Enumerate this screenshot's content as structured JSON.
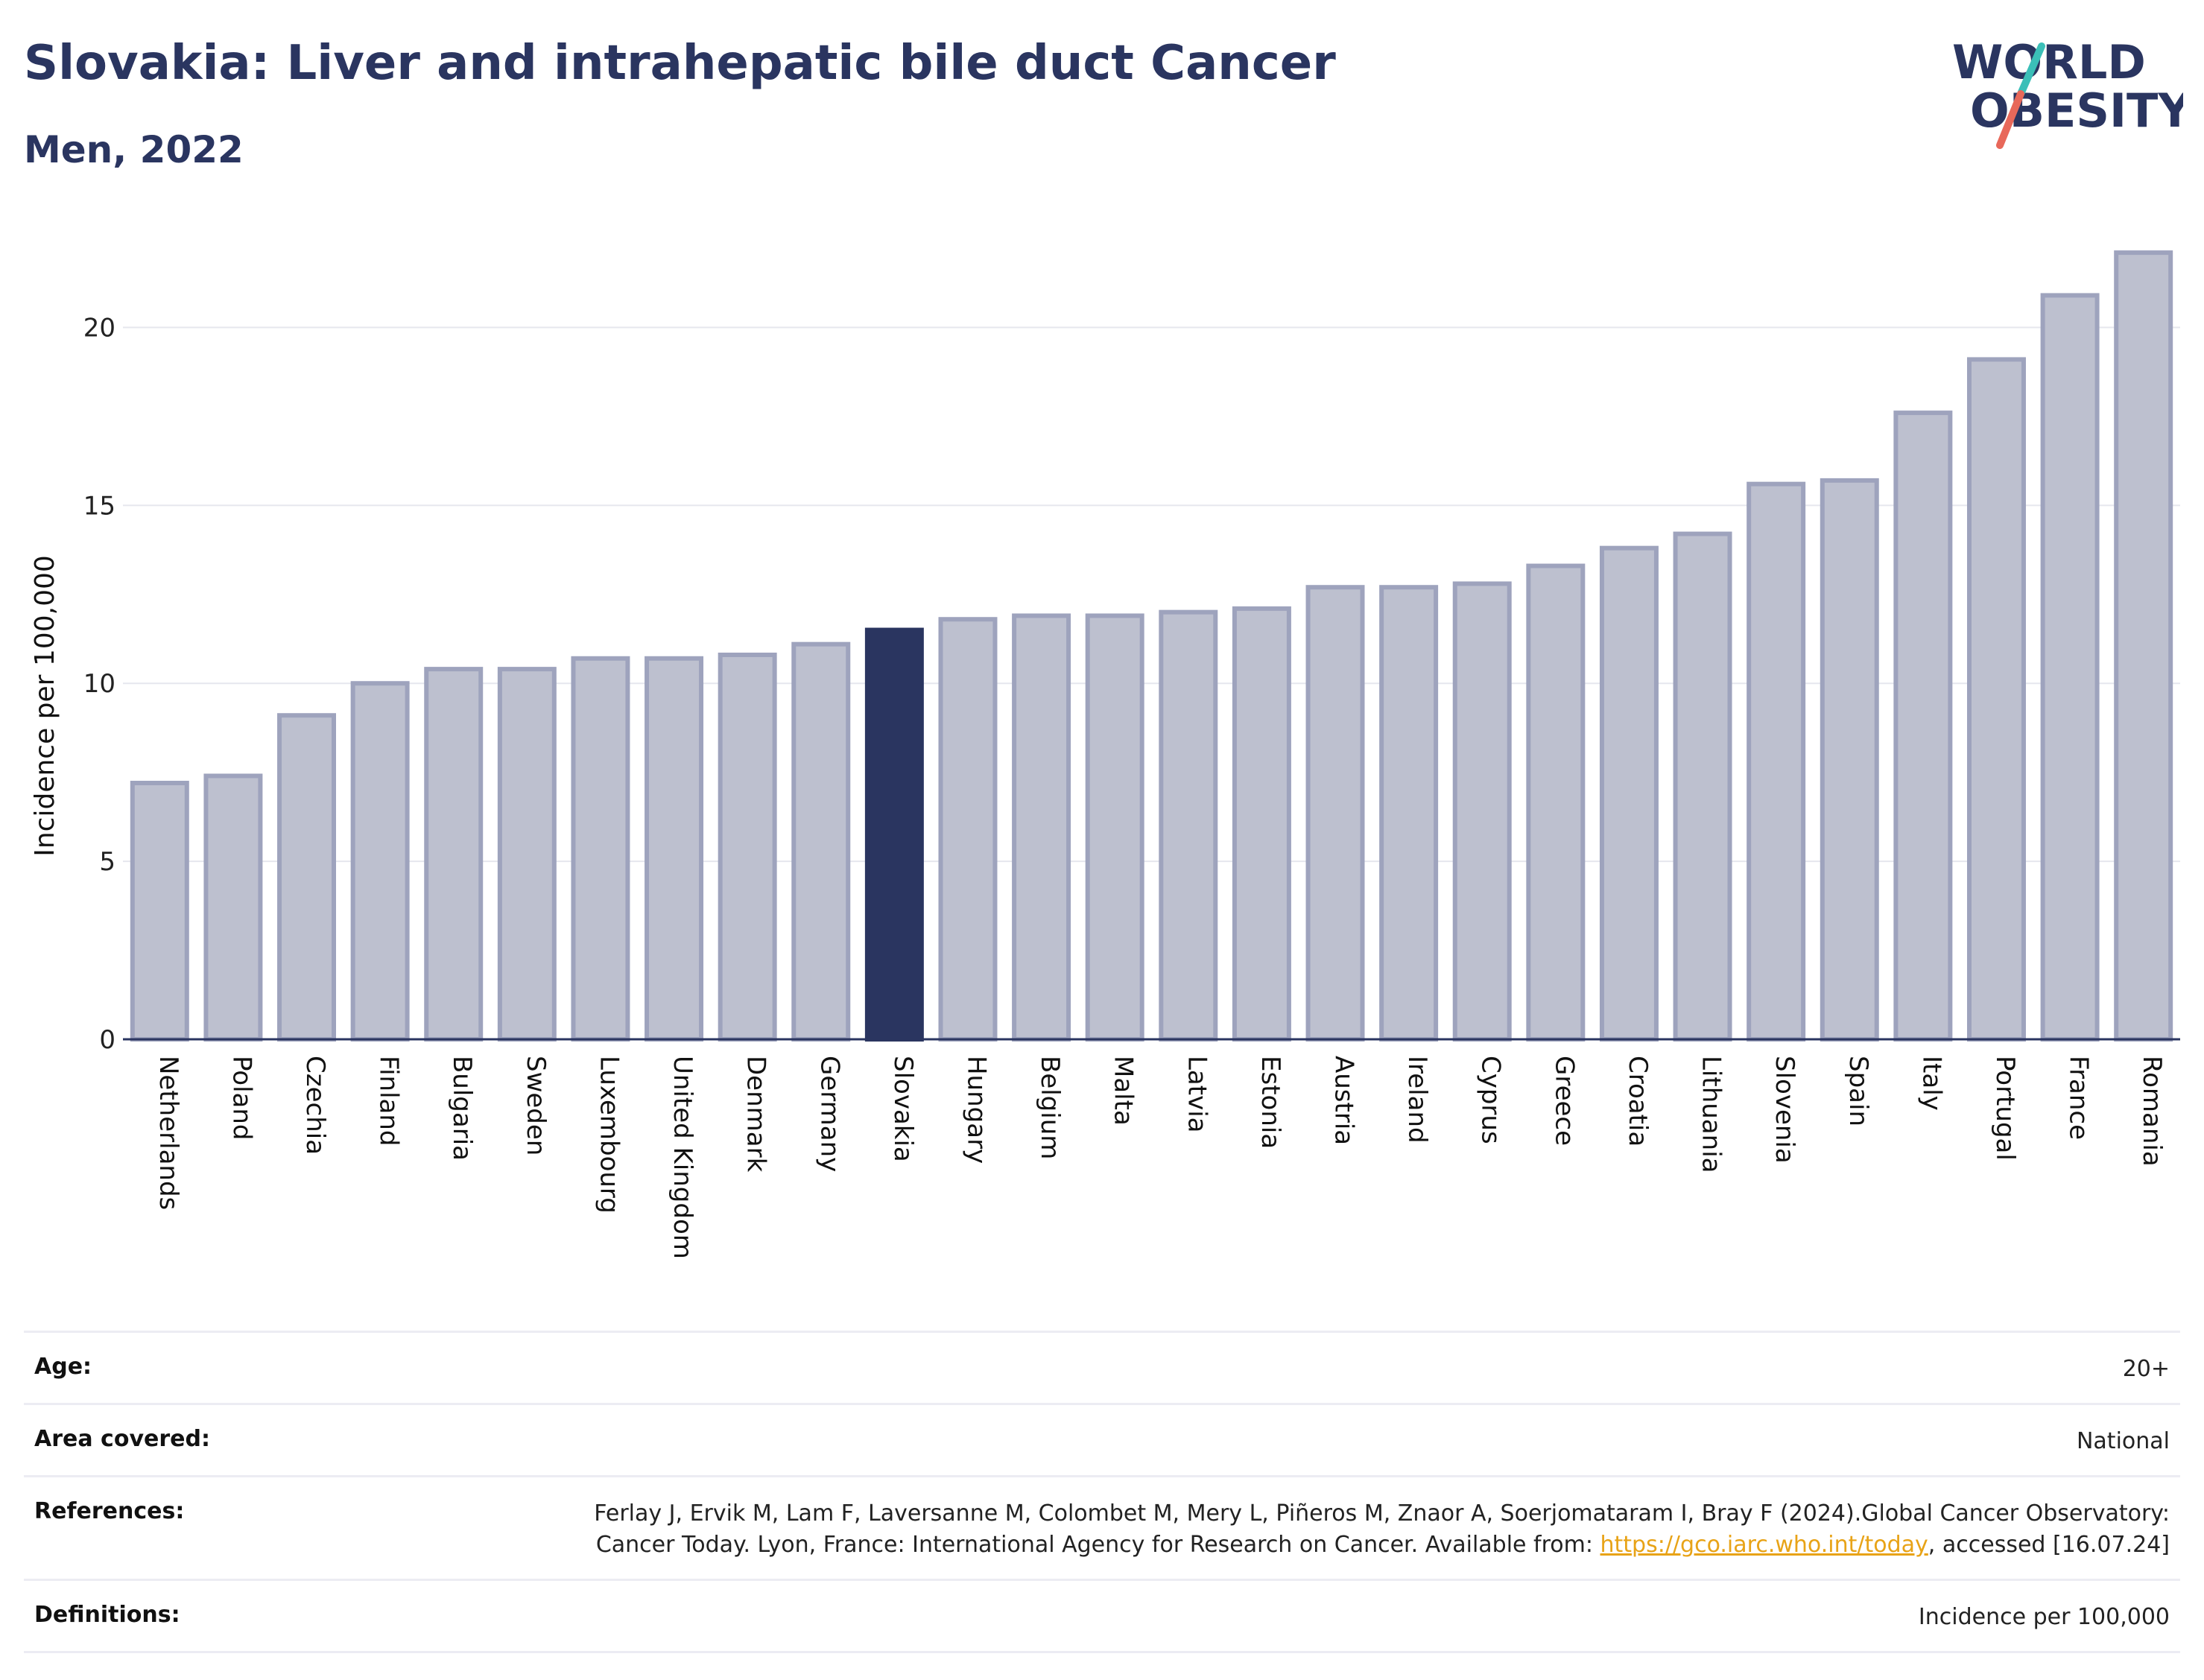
{
  "header": {
    "title": "Slovakia: Liver and intrahepatic bile duct Cancer",
    "subtitle": "Men, 2022"
  },
  "logo": {
    "line1": "WORLD",
    "line2": "OBESITY"
  },
  "colors": {
    "highlight": "#2a3560",
    "bar_fill": "#bdc0cf",
    "bar_stroke": "#9ea3bd",
    "grid": "#e6e7ee",
    "logo_text": "#2a3560",
    "logo_slash_red": "#e8685a",
    "logo_slash_teal": "#3bbfb8",
    "link": "#e8a317"
  },
  "chart_data": {
    "type": "bar",
    "title": "Slovakia: Liver and intrahepatic bile duct Cancer",
    "subtitle": "Men, 2022",
    "xlabel": "",
    "ylabel": "Incidence per 100,000",
    "ylim": [
      0,
      22.5
    ],
    "yticks": [
      0,
      5,
      10,
      15,
      20
    ],
    "grid": true,
    "highlight_category": "Slovakia",
    "categories": [
      "Netherlands",
      "Poland",
      "Czechia",
      "Finland",
      "Bulgaria",
      "Sweden",
      "Luxembourg",
      "United Kingdom",
      "Denmark",
      "Germany",
      "Slovakia",
      "Hungary",
      "Belgium",
      "Malta",
      "Latvia",
      "Estonia",
      "Austria",
      "Ireland",
      "Cyprus",
      "Greece",
      "Croatia",
      "Lithuania",
      "Slovenia",
      "Spain",
      "Italy",
      "Portugal",
      "France",
      "Romania"
    ],
    "values": [
      7.2,
      7.4,
      9.1,
      10.0,
      10.4,
      10.4,
      10.7,
      10.7,
      10.8,
      11.1,
      11.5,
      11.8,
      11.9,
      11.9,
      12.0,
      12.1,
      12.7,
      12.7,
      12.8,
      13.3,
      13.8,
      14.2,
      15.6,
      15.7,
      17.6,
      19.1,
      20.9,
      22.1
    ]
  },
  "meta": {
    "age_label": "Age:",
    "age_value": "20+",
    "area_label": "Area covered:",
    "area_value": "National",
    "references_label": "References:",
    "references_text_1": "Ferlay J, Ervik M, Lam F, Laversanne M, Colombet M, Mery L, Piñeros M, Znaor A, Soerjomataram I, Bray F (2024).Global Cancer Observatory: Cancer Today. Lyon, France: International Agency for Research on Cancer. Available from: ",
    "references_link": "https://gco.iarc.who.int/today",
    "references_text_2": ", accessed [16.07.24]",
    "definitions_label": "Definitions:",
    "definitions_value": "Incidence per 100,000"
  }
}
